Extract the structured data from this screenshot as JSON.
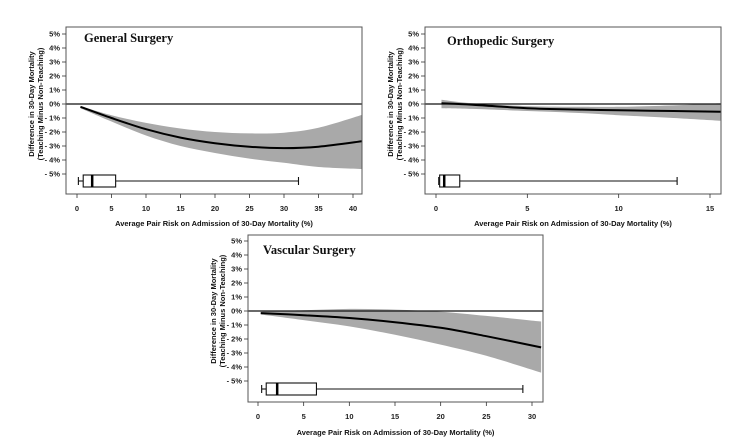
{
  "chart_data": [
    {
      "type": "line",
      "title": "General Surgery",
      "xlabel": "Average Pair Risk on Admission of 30-Day Mortality (%)",
      "ylabel": [
        "Difference in 30-Day Mortality",
        "(Teaching Minus Non-Teaching)"
      ],
      "xlim": [
        -1.5,
        41.5
      ],
      "ylim": [
        -6.4,
        5.5
      ],
      "xticks": [
        0,
        5,
        10,
        15,
        20,
        25,
        30,
        35,
        40
      ],
      "xtick_labels": [
        "0",
        "5",
        "10",
        "15",
        "20",
        "25",
        "30",
        "35",
        "40"
      ],
      "yticks": [
        5,
        4,
        3,
        2,
        1,
        0,
        -1,
        -2,
        -3,
        -4,
        -5
      ],
      "ytick_labels": [
        "5%",
        "4%",
        "3%",
        "2%",
        "1%",
        "0%",
        "- 1%",
        "- 2%",
        "- 3%",
        "- 4%",
        "- 5%"
      ],
      "reference_line": 0,
      "series": [
        {
          "name": "estimate",
          "x": [
            0.5,
            5,
            10,
            15,
            20,
            25,
            30,
            35,
            41.5
          ],
          "y": [
            -0.2,
            -1.0,
            -1.8,
            -2.4,
            -2.8,
            -3.05,
            -3.15,
            -3.05,
            -2.65
          ]
        },
        {
          "name": "ci_upper",
          "x": [
            0.5,
            5,
            10,
            15,
            20,
            25,
            30,
            35,
            41.5
          ],
          "y": [
            -0.15,
            -0.8,
            -1.35,
            -1.75,
            -2.0,
            -2.1,
            -2.05,
            -1.7,
            -0.75
          ]
        },
        {
          "name": "ci_lower",
          "x": [
            0.5,
            5,
            10,
            15,
            20,
            25,
            30,
            35,
            41.5
          ],
          "y": [
            -0.3,
            -1.25,
            -2.25,
            -3.0,
            -3.5,
            -3.9,
            -4.2,
            -4.5,
            -4.65
          ]
        }
      ],
      "boxplot": {
        "min": 0.2,
        "q1": 0.9,
        "median": 2.2,
        "q3": 5.6,
        "max": 32.1
      }
    },
    {
      "type": "line",
      "title": "Orthopedic Surgery",
      "xlabel": "Average Pair Risk on Admission of 30-Day Mortality (%)",
      "ylabel": [
        "Difference in 30-Day Mortality",
        "(Teaching Minus Non-Teaching)"
      ],
      "xlim": [
        -0.6,
        15.6
      ],
      "ylim": [
        -6.4,
        5.5
      ],
      "xticks": [
        0,
        5,
        10,
        15
      ],
      "xtick_labels": [
        "0",
        "5",
        "10",
        "15"
      ],
      "yticks": [
        5,
        4,
        3,
        2,
        1,
        0,
        -1,
        -2,
        -3,
        -4,
        -5
      ],
      "ytick_labels": [
        "5%",
        "4%",
        "3%",
        "2%",
        "1%",
        "0%",
        "- 1%",
        "- 2%",
        "- 3%",
        "- 4%",
        "- 5%"
      ],
      "reference_line": 0,
      "series": [
        {
          "name": "estimate",
          "x": [
            0.3,
            2,
            5,
            8,
            10,
            13,
            15.6
          ],
          "y": [
            0.05,
            -0.05,
            -0.3,
            -0.4,
            -0.45,
            -0.5,
            -0.55
          ]
        },
        {
          "name": "ci_upper",
          "x": [
            0.3,
            2,
            5,
            8,
            10,
            13,
            15.6
          ],
          "y": [
            0.3,
            0.05,
            -0.15,
            -0.2,
            -0.2,
            -0.1,
            0.05
          ]
        },
        {
          "name": "ci_lower",
          "x": [
            0.3,
            2,
            5,
            8,
            10,
            13,
            15.6
          ],
          "y": [
            -0.3,
            -0.35,
            -0.5,
            -0.65,
            -0.8,
            -1.0,
            -1.2
          ]
        }
      ],
      "boxplot": {
        "min": 0.15,
        "q1": 0.2,
        "median": 0.45,
        "q3": 1.3,
        "max": 13.2
      }
    },
    {
      "type": "line",
      "title": "Vascular Surgery",
      "xlabel": "Average Pair Risk on Admission of 30-Day Mortality (%)",
      "ylabel": [
        "Difference in 30-Day Mortality",
        "(Teaching Minus Non-Teaching)"
      ],
      "xlim": [
        -1.1,
        31.1
      ],
      "ylim": [
        -6.4,
        5.5
      ],
      "xticks": [
        0,
        5,
        10,
        15,
        20,
        25,
        30
      ],
      "xtick_labels": [
        "0",
        "5",
        "10",
        "15",
        "20",
        "25",
        "30"
      ],
      "yticks": [
        5,
        4,
        3,
        2,
        1,
        0,
        -1,
        -2,
        -3,
        -4,
        -5
      ],
      "ytick_labels": [
        "5%",
        "4%",
        "3%",
        "2%",
        "1%",
        "0%",
        "- 1%",
        "- 2%",
        "- 3%",
        "- 4%",
        "- 5%"
      ],
      "reference_line": 0,
      "series": [
        {
          "name": "estimate",
          "x": [
            0.3,
            5,
            10,
            15,
            20,
            25,
            31
          ],
          "y": [
            -0.15,
            -0.3,
            -0.5,
            -0.8,
            -1.2,
            -1.8,
            -2.6
          ]
        },
        {
          "name": "ci_upper",
          "x": [
            0.3,
            5,
            10,
            15,
            20,
            25,
            31
          ],
          "y": [
            -0.05,
            0.05,
            0.15,
            0.1,
            -0.05,
            -0.35,
            -0.75
          ]
        },
        {
          "name": "ci_lower",
          "x": [
            0.3,
            5,
            10,
            15,
            20,
            25,
            31
          ],
          "y": [
            -0.25,
            -0.65,
            -1.1,
            -1.7,
            -2.4,
            -3.2,
            -4.4
          ]
        }
      ],
      "boxplot": {
        "min": 0.4,
        "q1": 0.9,
        "median": 2.1,
        "q3": 6.4,
        "max": 29.0
      }
    }
  ],
  "colors": {
    "band": "#a9a9a9",
    "line": "#000000",
    "frame": "#555555",
    "text": "#222222"
  }
}
